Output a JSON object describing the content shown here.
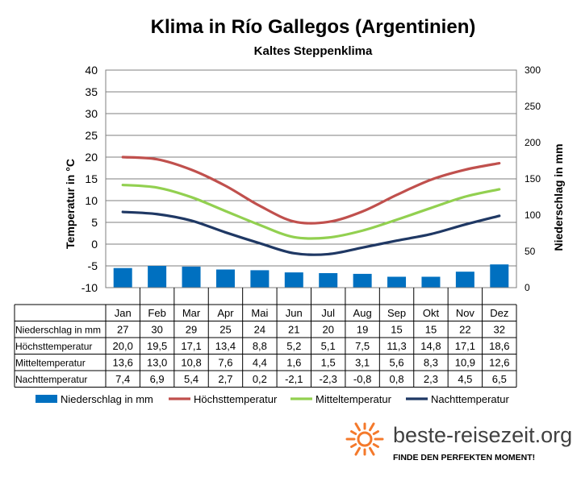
{
  "chart_data": {
    "type": "bar",
    "title": "Klima in Río Gallegos (Argentinien)",
    "subtitle": "Kaltes Steppenklima",
    "ylabel_left": "Temperatur in °C",
    "ylabel_right": "Niederschlag in mm",
    "ylim_left": [
      -10,
      40
    ],
    "ylim_right": [
      0,
      300
    ],
    "yticks_left": [
      "40",
      "35",
      "30",
      "25",
      "20",
      "15",
      "10",
      "5",
      "0",
      "-5",
      "-10"
    ],
    "yticks_right": [
      "300",
      "250",
      "200",
      "150",
      "100",
      "50",
      "0"
    ],
    "grid": "horizontal",
    "legend_position": "bottom",
    "categories": [
      "Jan",
      "Feb",
      "Mar",
      "Apr",
      "Mai",
      "Jun",
      "Jul",
      "Aug",
      "Sep",
      "Okt",
      "Nov",
      "Dez"
    ],
    "series": [
      {
        "name": "Niederschlag in mm",
        "type": "bar",
        "axis": "right",
        "color": "#0070C0",
        "values": [
          27,
          30,
          29,
          25,
          24,
          21,
          20,
          19,
          15,
          15,
          22,
          32
        ],
        "labels": [
          "27",
          "30",
          "29",
          "25",
          "24",
          "21",
          "20",
          "19",
          "15",
          "15",
          "22",
          "32"
        ]
      },
      {
        "name": "Höchsttemperatur",
        "type": "line",
        "axis": "left",
        "color": "#C0504D",
        "values": [
          20.0,
          19.5,
          17.1,
          13.4,
          8.8,
          5.2,
          5.1,
          7.5,
          11.3,
          14.8,
          17.1,
          18.6
        ],
        "labels": [
          "20,0",
          "19,5",
          "17,1",
          "13,4",
          "8,8",
          "5,2",
          "5,1",
          "7,5",
          "11,3",
          "14,8",
          "17,1",
          "18,6"
        ]
      },
      {
        "name": "Mitteltemperatur",
        "type": "line",
        "axis": "left",
        "color": "#92D050",
        "values": [
          13.6,
          13.0,
          10.8,
          7.6,
          4.4,
          1.6,
          1.5,
          3.1,
          5.6,
          8.3,
          10.9,
          12.6
        ],
        "labels": [
          "13,6",
          "13,0",
          "10,8",
          "7,6",
          "4,4",
          "1,6",
          "1,5",
          "3,1",
          "5,6",
          "8,3",
          "10,9",
          "12,6"
        ]
      },
      {
        "name": "Nachttemperatur",
        "type": "line",
        "axis": "left",
        "color": "#1F3864",
        "values": [
          7.4,
          6.9,
          5.4,
          2.7,
          0.2,
          -2.1,
          -2.3,
          -0.8,
          0.8,
          2.3,
          4.5,
          6.5
        ],
        "labels": [
          "7,4",
          "6,9",
          "5,4",
          "2,7",
          "0,2",
          "-2,1",
          "-2,3",
          "-0,8",
          "0,8",
          "2,3",
          "4,5",
          "6,5"
        ]
      }
    ]
  },
  "brand": {
    "name": "beste-reisezeit.org",
    "tagline": "FINDE DEN PERFEKTEN MOMENT!",
    "accent_color": "#F4792B"
  }
}
